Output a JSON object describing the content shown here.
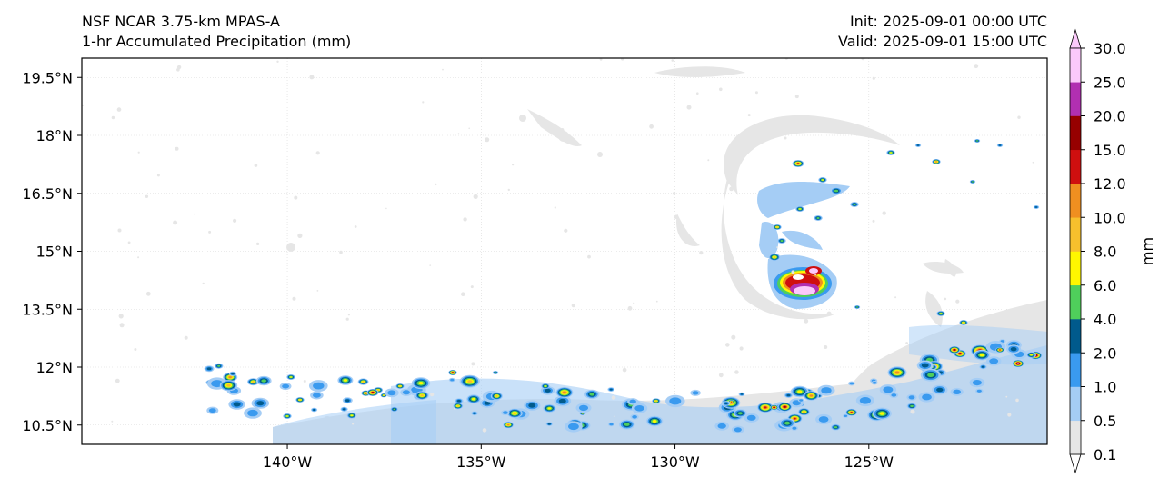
{
  "title": {
    "line1": "NSF NCAR 3.75-km MPAS-A",
    "line2": "1-hr Accumulated Precipitation (mm)",
    "init": "Init: 2025-09-01 00:00 UTC",
    "valid": "Valid: 2025-09-01 15:00 UTC"
  },
  "axes": {
    "lat_labels": [
      {
        "label": "19.5°N",
        "value": 19.5
      },
      {
        "label": "18°N",
        "value": 18.0
      },
      {
        "label": "16.5°N",
        "value": 16.5
      },
      {
        "label": "15°N",
        "value": 15.0
      },
      {
        "label": "13.5°N",
        "value": 13.5
      },
      {
        "label": "12°N",
        "value": 12.0
      },
      {
        "label": "10.5°N",
        "value": 10.5
      }
    ],
    "lon_labels": [
      {
        "label": "140°W",
        "value": -140
      },
      {
        "label": "135°W",
        "value": -135
      },
      {
        "label": "130°W",
        "value": -130
      },
      {
        "label": "125°W",
        "value": -125
      }
    ],
    "lon_range": [
      -145.3,
      -120.4
    ],
    "lat_range": [
      10.0,
      20.0
    ]
  },
  "colorbar": {
    "unit": "mm",
    "levels": [
      "0.1",
      "0.5",
      "1.0",
      "2.0",
      "4.0",
      "6.0",
      "8.0",
      "10.0",
      "12.0",
      "15.0",
      "20.0",
      "25.0",
      "30.0"
    ],
    "colors": [
      "#e6e6e6",
      "#a5cdf5",
      "#3a9aef",
      "#005a8c",
      "#4fcf5b",
      "#fff700",
      "#f7c02d",
      "#ef8f20",
      "#cf0f0f",
      "#960000",
      "#b12fb1",
      "#fbc9fb"
    ]
  }
}
